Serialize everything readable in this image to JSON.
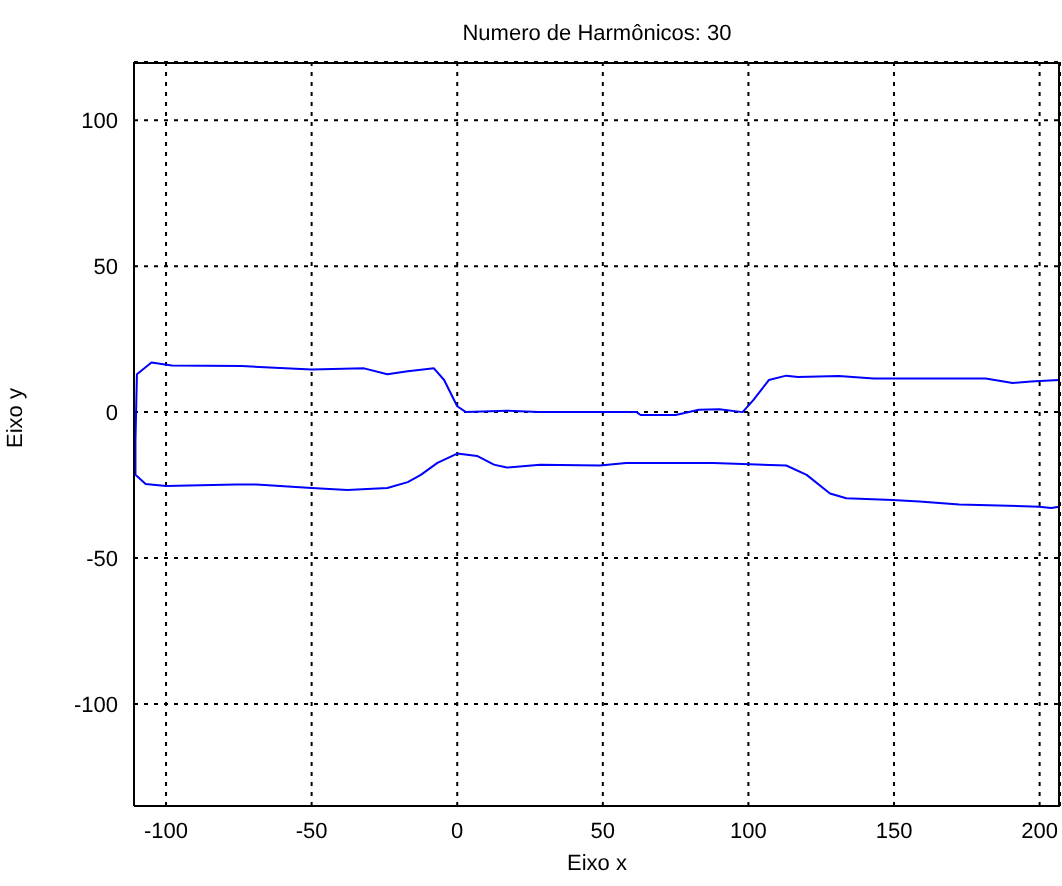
{
  "chart_data": {
    "type": "line",
    "title": "Numero de Harmônicos: 30",
    "xlabel": "Eixo x",
    "ylabel": "Eixo y",
    "xlim": [
      -111,
      207
    ],
    "ylim": [
      -135,
      120
    ],
    "xticks": [
      -100,
      -50,
      0,
      50,
      100,
      150,
      200
    ],
    "yticks": [
      -100,
      -50,
      0,
      50,
      100
    ],
    "grid": true,
    "series": [
      {
        "color": "#0000ff",
        "x": [
          206.7,
          204,
          199.8,
          172.4,
          158.7,
          149.5,
          133.6,
          128,
          120,
          113,
          88,
          58,
          49,
          28.5,
          17,
          12.6,
          6.8,
          0,
          -6.8,
          -12.5,
          -17,
          -24,
          -37.7,
          -50,
          -69,
          -76,
          -100,
          -107,
          -110.5,
          -110.5,
          -110,
          -105,
          -98,
          -74,
          -50,
          -32,
          -24,
          -17,
          -8,
          -4.5,
          0,
          3,
          17,
          28,
          61.6,
          63,
          75,
          83,
          90,
          98,
          101.6,
          107,
          113,
          117,
          131,
          143,
          181.5,
          190.7,
          197,
          206.6
        ],
        "values": [
          -32.4,
          -32.9,
          -32.4,
          -31.7,
          -30.6,
          -30.1,
          -29.5,
          -27.9,
          -21.5,
          -18.3,
          -17.4,
          -17.4,
          -18.3,
          -18,
          -19,
          -18,
          -15,
          -14.2,
          -17.4,
          -21.5,
          -24,
          -26,
          -26.7,
          -26,
          -24.8,
          -24.8,
          -25.3,
          -24.6,
          -21.5,
          -10,
          13,
          17,
          16,
          15.8,
          14.6,
          15,
          13,
          14,
          15,
          11,
          2,
          0,
          0.5,
          0,
          0,
          -1,
          -1,
          0.8,
          1,
          0,
          4,
          11,
          12.5,
          12,
          12.4,
          11.5,
          11.5,
          10,
          10.5,
          11
        ]
      }
    ]
  }
}
